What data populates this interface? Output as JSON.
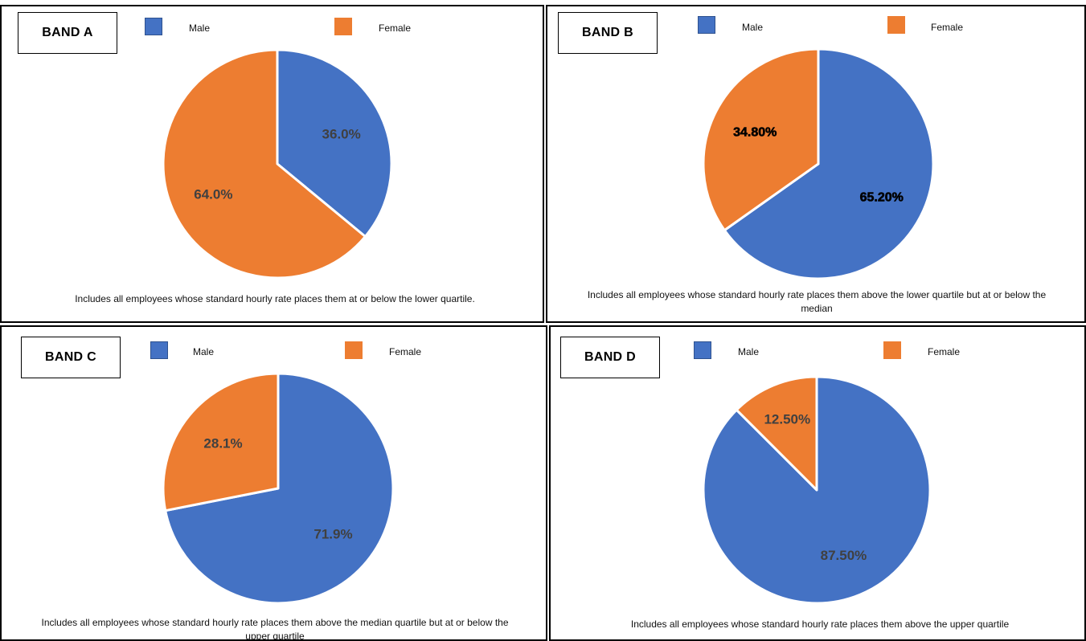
{
  "colors": {
    "male": "#4472C4",
    "female": "#ED7D31",
    "male_border": "#2F528F",
    "female_border": "#ED7D31",
    "label_dark": "#404040",
    "label_black": "#000000"
  },
  "legend": {
    "male_label": "Male",
    "female_label": "Female"
  },
  "chart_data": [
    {
      "type": "pie",
      "title": "BAND A",
      "labels": [
        "Male",
        "Female"
      ],
      "values": [
        36.0,
        64.0
      ],
      "data_labels": [
        "36.0%",
        "64.0%"
      ],
      "caption": "Includes all employees whose standard hourly rate places them at or below the lower quartile."
    },
    {
      "type": "pie",
      "title": "BAND B",
      "labels": [
        "Male",
        "Female"
      ],
      "values": [
        65.2,
        34.8
      ],
      "data_labels": [
        "65.20%",
        "34.80%"
      ],
      "caption": "Includes all employees whose standard hourly rate places them above the lower quartile but at or below the median"
    },
    {
      "type": "pie",
      "title": "BAND C",
      "labels": [
        "Male",
        "Female"
      ],
      "values": [
        71.9,
        28.1
      ],
      "data_labels": [
        "71.9%",
        "28.1%"
      ],
      "caption": "Includes all employees whose standard hourly rate places them above the median quartile but at or below the upper quartile"
    },
    {
      "type": "pie",
      "title": "BAND D",
      "labels": [
        "Male",
        "Female"
      ],
      "values": [
        87.5,
        12.5
      ],
      "data_labels": [
        "87.50%",
        "12.50%"
      ],
      "caption": "Includes all employees whose standard hourly rate places them above the upper quartile"
    }
  ]
}
